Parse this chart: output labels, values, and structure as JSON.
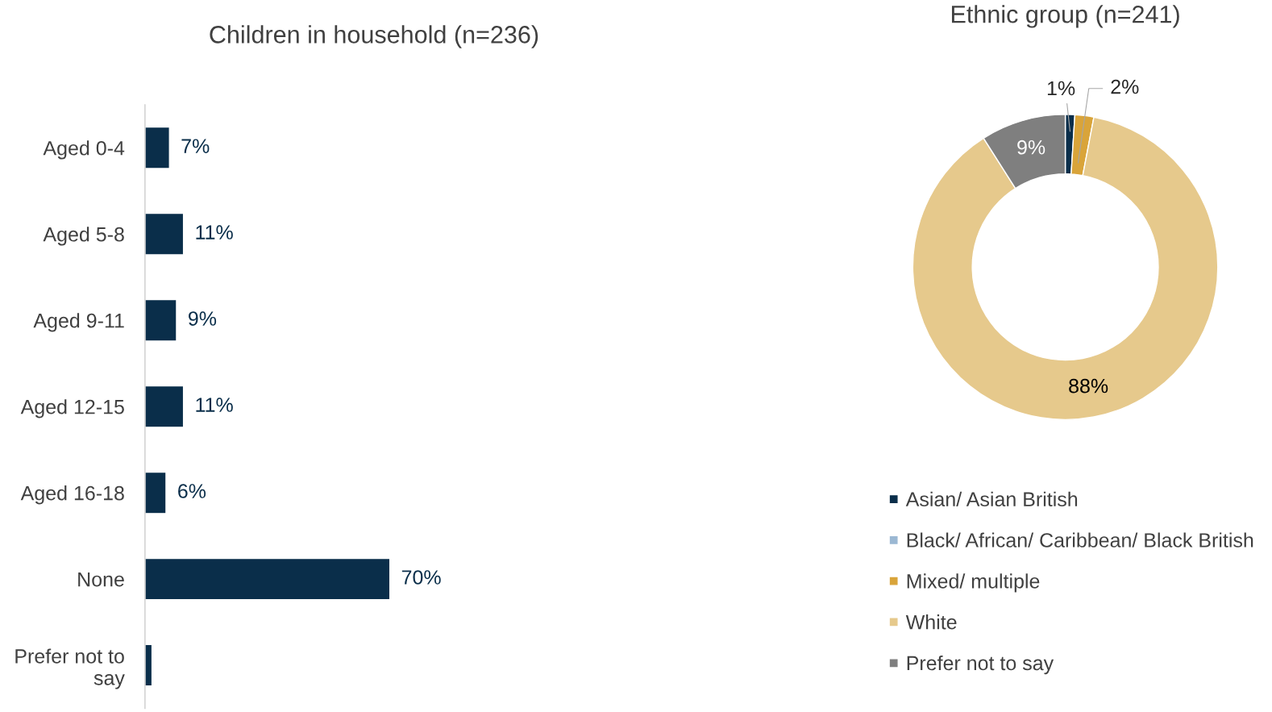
{
  "chart_data": [
    {
      "type": "bar",
      "orientation": "horizontal",
      "title": "Children in household (n=236)",
      "categories": [
        "Aged 0-4",
        "Aged 5-8",
        "Aged 9-11",
        "Aged 12-15",
        "Aged 16-18",
        "None",
        "Prefer not to\nsay"
      ],
      "values": [
        7,
        11,
        9,
        11,
        6,
        70,
        2
      ],
      "color": "#0a2e4a",
      "value_labels": [
        "7%",
        "11%",
        "9%",
        "11%",
        "6%",
        "70%",
        null
      ],
      "grid": false,
      "legend": false
    },
    {
      "type": "donut",
      "title": "Ethnic group (n=241)",
      "categories": [
        "Asian/ Asian British",
        "Black/ African/ Caribbean/ Black British",
        "Mixed/ multiple",
        "White",
        "Prefer not to say"
      ],
      "values": [
        1,
        0,
        2,
        88,
        9
      ],
      "colors": [
        "#0a2e4a",
        "#9bb8d3",
        "#d9a43a",
        "#e6c98c",
        "#7f7f7f"
      ],
      "value_labels": [
        "1%",
        null,
        "2%",
        "88%",
        "9%"
      ],
      "legend": "bottom left"
    }
  ]
}
